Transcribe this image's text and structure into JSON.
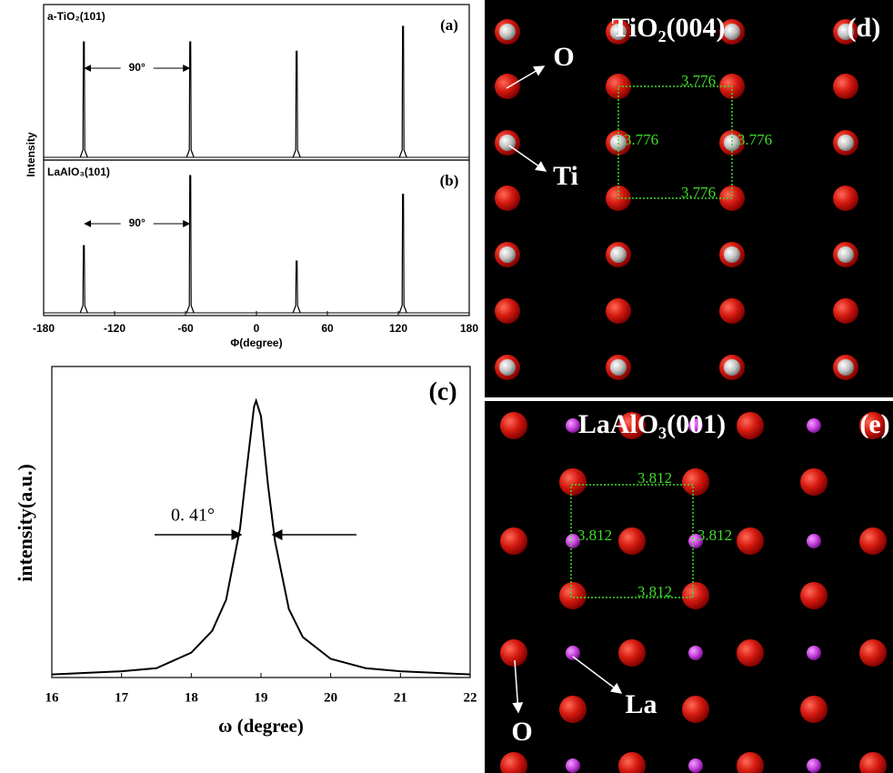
{
  "chart_data": [
    {
      "type": "spectrum",
      "panel": "(a)",
      "label": "a-TiO₂(101)",
      "annotation": "90°",
      "x": [
        -146,
        -56,
        34,
        124
      ],
      "values": [
        0.76,
        0.76,
        0.7,
        0.86
      ],
      "xlim": [
        -180,
        180
      ],
      "ylim": [
        0,
        1
      ],
      "color": "#000000"
    },
    {
      "type": "spectrum",
      "panel": "(b)",
      "label": "LaAlO₃(101)",
      "annotation": "90°",
      "x": [
        -146,
        -56,
        34,
        124
      ],
      "values": [
        0.45,
        0.9,
        0.35,
        0.78
      ],
      "xlim": [
        -180,
        180
      ],
      "ylim": [
        0,
        1
      ],
      "color": "#000000",
      "xticks": [
        -180,
        -120,
        -60,
        0,
        60,
        120,
        180
      ],
      "xlabel": "Φ(degree)",
      "ylabel": "Intensity"
    },
    {
      "type": "line",
      "panel": "(c)",
      "annotation": "0. 41°",
      "x": [
        16,
        16.5,
        17,
        17.5,
        18,
        18.3,
        18.5,
        18.7,
        18.8,
        18.9,
        18.93,
        19.0,
        19.1,
        19.2,
        19.4,
        19.6,
        20,
        20.5,
        21,
        21.5,
        22
      ],
      "values": [
        0.01,
        0.015,
        0.02,
        0.03,
        0.08,
        0.15,
        0.25,
        0.48,
        0.68,
        0.87,
        0.89,
        0.84,
        0.62,
        0.44,
        0.22,
        0.13,
        0.06,
        0.03,
        0.02,
        0.015,
        0.01
      ],
      "xlim": [
        16,
        22
      ],
      "ylim": [
        0,
        1
      ],
      "xticks": [
        16,
        17,
        18,
        19,
        20,
        21,
        22
      ],
      "color": "#000000",
      "xlabel": "ω (degree)",
      "ylabel": "intensity(a.u.)"
    }
  ],
  "structures": [
    {
      "panel": "(d)",
      "title": "TiO₂(004)",
      "labels": [
        "O",
        "Ti"
      ],
      "spacings": [
        "3.776",
        "3.776",
        "3.776",
        "3.776"
      ]
    },
    {
      "panel": "(e)",
      "title": "LaAlO₃(001)",
      "labels": [
        "La",
        "O"
      ],
      "spacings": [
        "3.812",
        "3.812",
        "3.812",
        "3.812"
      ]
    }
  ]
}
